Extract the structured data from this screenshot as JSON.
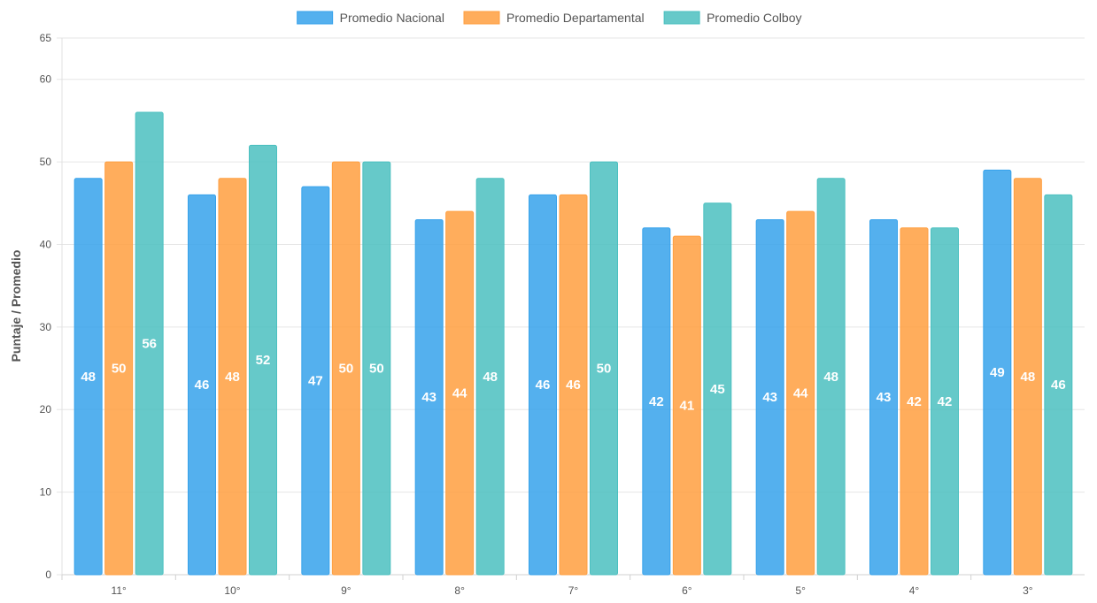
{
  "chart_data": {
    "type": "bar",
    "title": "",
    "xlabel": "",
    "ylabel": "Puntaje / Promedio",
    "ylim": [
      0,
      65
    ],
    "yticks": [
      0,
      10,
      20,
      30,
      40,
      50,
      60,
      65
    ],
    "grid": true,
    "legend_position": "top-center",
    "categories": [
      "11°",
      "10°",
      "9°",
      "8°",
      "7°",
      "6°",
      "5°",
      "4°",
      "3°"
    ],
    "series": [
      {
        "name": "Promedio Nacional",
        "color": "#36a2eb",
        "values": [
          48,
          46,
          47,
          43,
          46,
          42,
          43,
          43,
          49
        ]
      },
      {
        "name": "Promedio Departamental",
        "color": "#ff9f40",
        "values": [
          50,
          48,
          50,
          44,
          46,
          41,
          44,
          42,
          48
        ]
      },
      {
        "name": "Promedio Colboy",
        "color": "#4bc0c0",
        "values": [
          56,
          52,
          50,
          48,
          50,
          45,
          48,
          42,
          46
        ]
      }
    ]
  }
}
